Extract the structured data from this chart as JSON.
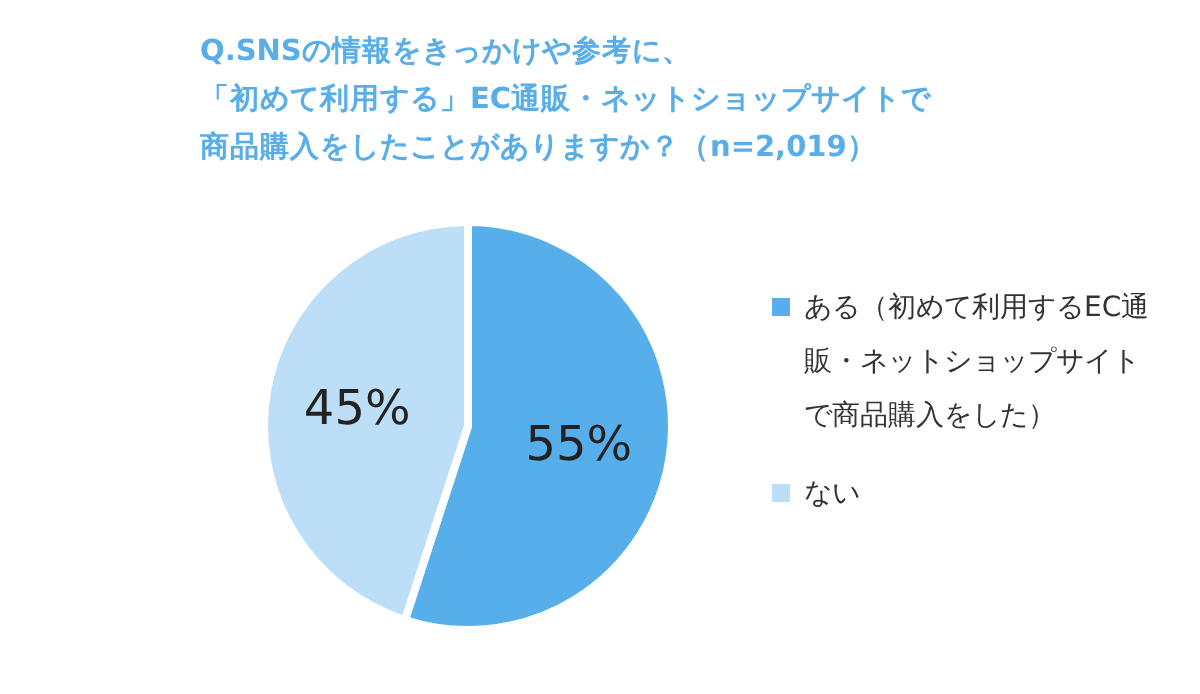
{
  "chart_data": {
    "type": "pie",
    "title": "Q.SNSの情報をきっかけや参考に、「初めて利用する」EC通販・ネットショップサイトで商品購入をしたことがありますか？（n=2,019）",
    "categories": [
      "ある（初めて利用するEC通販・ネットショップサイトで商品購入をした）",
      "ない"
    ],
    "values": [
      55,
      45
    ],
    "colors": [
      "#56aeeb",
      "#bcdff7"
    ],
    "value_labels": [
      "55%",
      "45%"
    ],
    "legend": "right"
  }
}
